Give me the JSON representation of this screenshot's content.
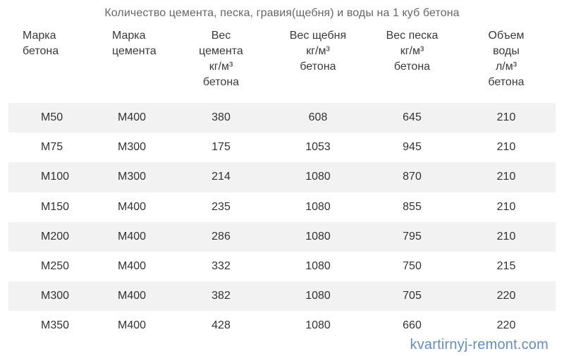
{
  "caption": "Количество цемента, песка, гравия(щебня) и воды на 1 куб бетона",
  "headers": {
    "concrete_grade": "Марка\nбетона",
    "cement_grade": "Марка\nцемента",
    "cement_weight": "Вес\nцемента\nкг/м³\nбетона",
    "gravel_weight": "Вес щебня\nкг/м³\nбетона",
    "sand_weight": "Вес песка\nкг/м³\nбетона",
    "water_volume": "Объем\nводы\nл/м³\nбетона"
  },
  "rows": [
    {
      "concrete": "М50",
      "cement": "М400",
      "cement_kg": "380",
      "gravel_kg": "608",
      "sand_kg": "645",
      "water_l": "210"
    },
    {
      "concrete": "М75",
      "cement": "М300",
      "cement_kg": "175",
      "gravel_kg": "1053",
      "sand_kg": "945",
      "water_l": "210"
    },
    {
      "concrete": "М100",
      "cement": "М300",
      "cement_kg": "214",
      "gravel_kg": "1080",
      "sand_kg": "870",
      "water_l": "210"
    },
    {
      "concrete": "М150",
      "cement": "М400",
      "cement_kg": "235",
      "gravel_kg": "1080",
      "sand_kg": "855",
      "water_l": "210"
    },
    {
      "concrete": "М200",
      "cement": "М400",
      "cement_kg": "286",
      "gravel_kg": "1080",
      "sand_kg": "795",
      "water_l": "210"
    },
    {
      "concrete": "М250",
      "cement": "М400",
      "cement_kg": "332",
      "gravel_kg": "1080",
      "sand_kg": "750",
      "water_l": "215"
    },
    {
      "concrete": "М300",
      "cement": "М400",
      "cement_kg": "382",
      "gravel_kg": "1080",
      "sand_kg": "705",
      "water_l": "220"
    },
    {
      "concrete": "М350",
      "cement": "М400",
      "cement_kg": "428",
      "gravel_kg": "1080",
      "sand_kg": "660",
      "water_l": "220"
    }
  ],
  "watermark": "kvartirnyj-remont.com",
  "colors": {
    "row_shade": "#f2f2f2",
    "text": "#333333",
    "caption": "#666666",
    "watermark": "#5f8fbf"
  }
}
